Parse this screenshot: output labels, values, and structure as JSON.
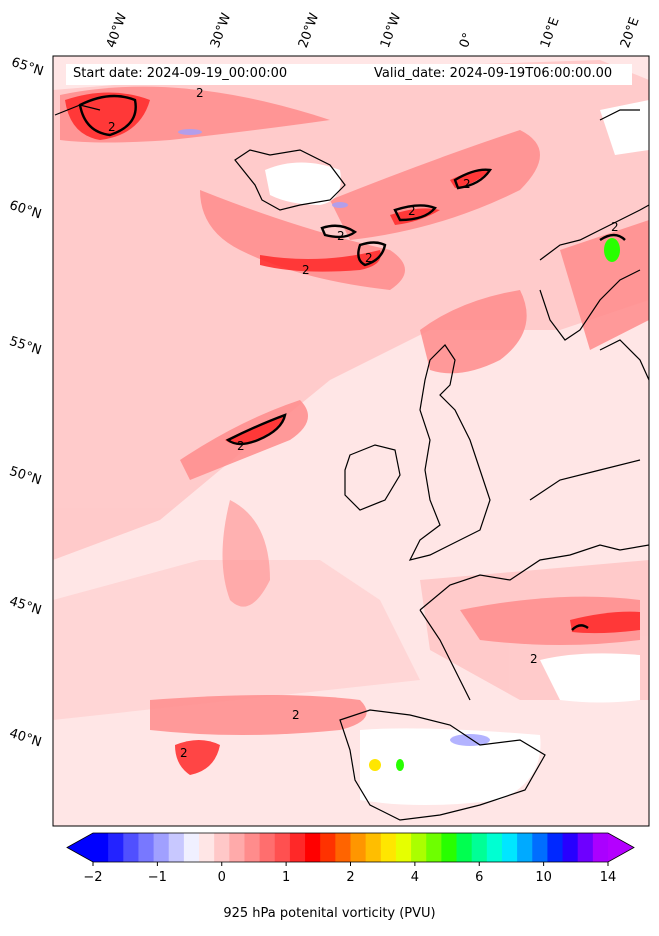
{
  "header": {
    "start_date": "Start date: 2024-09-19_00:00:00",
    "valid_date": "Valid_date: 2024-09-19T06:00:00.00"
  },
  "lat_labels": [
    "65°N",
    "60°N",
    "55°N",
    "50°N",
    "45°N",
    "40°N"
  ],
  "lon_labels": [
    "40°W",
    "30°W",
    "20°W",
    "10°W",
    "0°",
    "10°E",
    "20°E"
  ],
  "contour_label": "2",
  "colorbar": {
    "title": "925 hPa potenital vorticity (PVU)",
    "tick_labels": [
      "−2",
      "−1",
      "0",
      "1",
      "2",
      "4",
      "6",
      "10",
      "14"
    ],
    "colors": [
      "#0000ff",
      "#2323ff",
      "#5050ff",
      "#7878ff",
      "#a0a0ff",
      "#c8c8ff",
      "#f0f0ff",
      "#ffe6e6",
      "#ffc8c8",
      "#ffaaaa",
      "#ff8c8c",
      "#ff6e6e",
      "#ff5050",
      "#ff2828",
      "#ff0000",
      "#ff3200",
      "#ff6400",
      "#ff9600",
      "#ffbe00",
      "#ffe600",
      "#e6ff00",
      "#aaff00",
      "#6eff00",
      "#28ff00",
      "#00ff50",
      "#00ff96",
      "#00ffd2",
      "#00e6ff",
      "#00aaff",
      "#006eff",
      "#0028ff",
      "#2800ff",
      "#6e00ff",
      "#aa00ff"
    ]
  },
  "legend_colors": {
    "extend_low": "#0000ff",
    "extend_high": "#b400ff",
    "coastline": "#000000",
    "land_mask": "#ffffff"
  }
}
